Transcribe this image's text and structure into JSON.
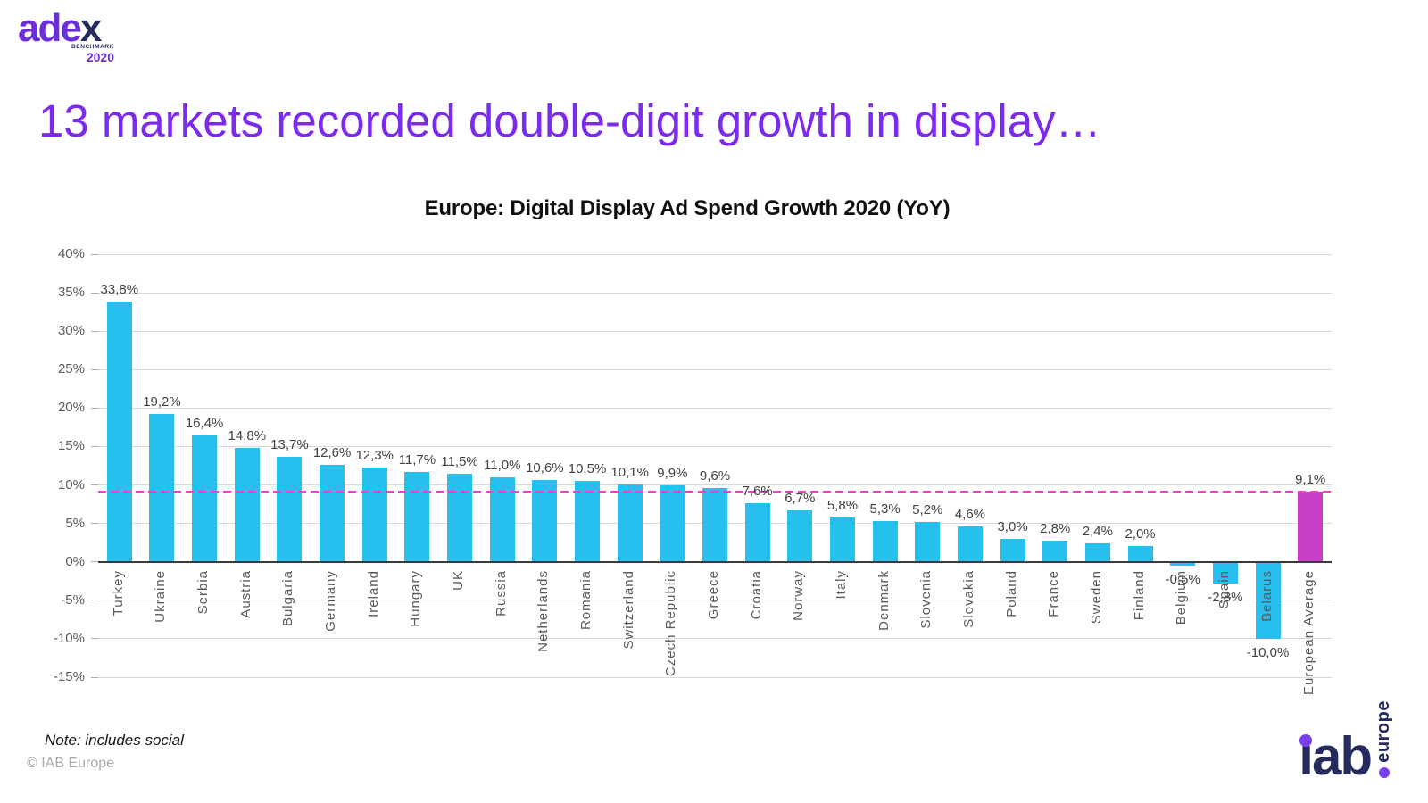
{
  "header": {
    "logo": {
      "main": "ade",
      "x": "x",
      "benchmark": "BENCHMARK",
      "year": "2020"
    }
  },
  "slide_title": "13 markets recorded double-digit growth in display…",
  "colors": {
    "title_purple": "#7C2BEE",
    "logo_purple": "#6A2FD6",
    "navy": "#262A5C",
    "bar_cyan": "#27C0EE",
    "highlight_magenta": "#C93FC9",
    "reference_pink": "#F23FC3"
  },
  "chart_data": {
    "type": "bar",
    "title": "Europe: Digital Display Ad Spend Growth 2020 (YoY)",
    "categories": [
      "Turkey",
      "Ukraine",
      "Serbia",
      "Austria",
      "Bulgaria",
      "Germany",
      "Ireland",
      "Hungary",
      "UK",
      "Russia",
      "Netherlands",
      "Romania",
      "Switzerland",
      "Czech Republic",
      "Greece",
      "Croatia",
      "Norway",
      "Italy",
      "Denmark",
      "Slovenia",
      "Slovakia",
      "Poland",
      "France",
      "Sweden",
      "Finland",
      "Belgium",
      "Spain",
      "Belarus",
      "European Average"
    ],
    "values": [
      33.8,
      19.2,
      16.4,
      14.8,
      13.7,
      12.6,
      12.3,
      11.7,
      11.5,
      11.0,
      10.6,
      10.5,
      10.1,
      9.9,
      9.6,
      7.6,
      6.7,
      5.8,
      5.3,
      5.2,
      4.6,
      3.0,
      2.8,
      2.4,
      2.0,
      -0.5,
      -2.8,
      -10.0,
      9.1
    ],
    "value_labels": [
      "33,8%",
      "19,2%",
      "16,4%",
      "14,8%",
      "13,7%",
      "12,6%",
      "12,3%",
      "11,7%",
      "11,5%",
      "11,0%",
      "10,6%",
      "10,5%",
      "10,1%",
      "9,9%",
      "9,6%",
      "7,6%",
      "6,7%",
      "5,8%",
      "5,3%",
      "5,2%",
      "4,6%",
      "3,0%",
      "2,8%",
      "2,4%",
      "2,0%",
      "-0,5%",
      "-2,8%",
      "-10,0%",
      "9,1%"
    ],
    "highlight_index": 28,
    "bar_color": "#27C0EE",
    "highlight_color": "#C93FC9",
    "reference_line": {
      "value": 9.1,
      "color": "#F23FC3",
      "style": "dashed"
    },
    "ylim": [
      -15,
      40
    ],
    "yticks": {
      "values": [
        40,
        35,
        30,
        25,
        20,
        15,
        10,
        5,
        0,
        -5,
        -10,
        -15
      ],
      "labels": [
        "40%",
        "35%",
        "30%",
        "25%",
        "20%",
        "15%",
        "10%",
        "5%",
        "0%",
        "-5%",
        "-10%",
        "-15%"
      ]
    },
    "grid": true,
    "legend": false
  },
  "footer": {
    "note": "Note: includes social",
    "copyright": "© IAB Europe",
    "logo": {
      "main": "iab",
      "vertical": "europe"
    }
  }
}
